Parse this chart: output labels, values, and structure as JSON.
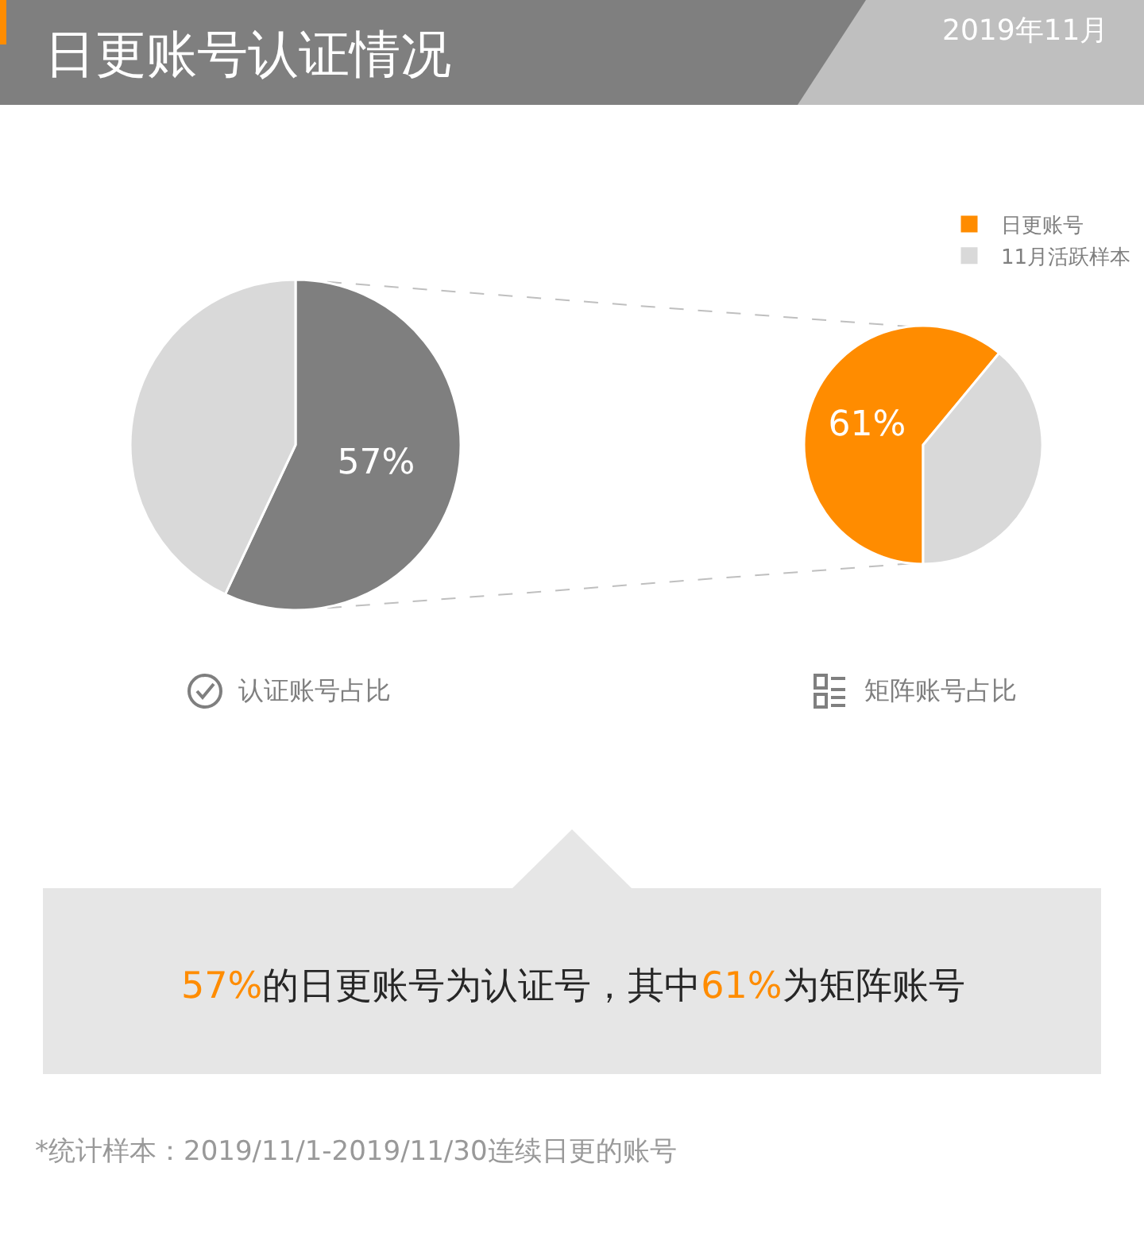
{
  "chart_data": [
    {
      "type": "other",
      "title": "日更账号认证情况",
      "subtitle": "2019年11月",
      "annotations": [
        "57%的日更账号为认证号，其中61%为矩阵账号",
        "*统计样本：2019/11/1-2019/11/30连续日更的账号"
      ]
    },
    {
      "type": "pie",
      "title": "认证账号占比",
      "categories": [
        null,
        null
      ],
      "values": [
        57,
        43
      ],
      "colors": [
        "#7f7f7f",
        "#d9d9d9"
      ],
      "value_labels": [
        "57%",
        null
      ]
    },
    {
      "type": "pie",
      "title": "矩阵账号占比",
      "categories": [
        "日更账号",
        "11月活跃样本"
      ],
      "values": [
        61,
        39
      ],
      "colors": [
        "#ff8c00",
        "#d9d9d9"
      ],
      "value_labels": [
        "61%",
        null
      ],
      "legend": "top right"
    }
  ]
}
